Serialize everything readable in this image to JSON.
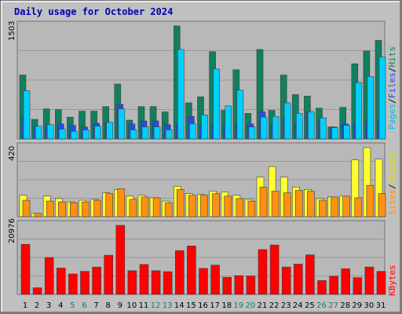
{
  "chart_data": {
    "type": "bar",
    "title": "Daily usage for October 2024",
    "days": [
      "1",
      "2",
      "3",
      "4",
      "5",
      "6",
      "7",
      "8",
      "9",
      "10",
      "11",
      "12",
      "13",
      "14",
      "15",
      "16",
      "17",
      "18",
      "19",
      "20",
      "21",
      "22",
      "23",
      "24",
      "25",
      "26",
      "27",
      "28",
      "29",
      "30",
      "31"
    ],
    "weekend_days": [
      "5",
      "6",
      "12",
      "13",
      "19",
      "20",
      "26",
      "27"
    ],
    "panels": {
      "top": {
        "max_label": "1503",
        "ylim": [
          0,
          1503
        ],
        "series": [
          {
            "name": "Hits",
            "color": "#108060",
            "values": [
              850,
              260,
              400,
              390,
              290,
              370,
              370,
              430,
              730,
              250,
              430,
              430,
              360,
              1503,
              480,
              560,
              1160,
              380,
              920,
              340,
              1190,
              380,
              850,
              590,
              570,
              410,
              160,
              420,
              1000,
              1170,
              1310
            ]
          },
          {
            "name": "Files",
            "color": "#2050e0",
            "values": [
              280,
              170,
              190,
              200,
              180,
              160,
              210,
              220,
              460,
              200,
              240,
              240,
              190,
              200,
              300,
              180,
              190,
              180,
              200,
              200,
              360,
              200,
              280,
              200,
              360,
              230,
              160,
              200,
              200,
              220,
              230
            ]
          },
          {
            "name": "Pages",
            "color": "#00d0ff",
            "values": [
              640,
              170,
              190,
              130,
              100,
              120,
              170,
              220,
              400,
              120,
              160,
              160,
              120,
              1190,
              200,
              320,
              930,
              440,
              650,
              160,
              290,
              300,
              480,
              340,
              360,
              280,
              150,
              180,
              750,
              830,
              1090
            ]
          }
        ]
      },
      "middle": {
        "max_label": "420",
        "ylim": [
          0,
          420
        ],
        "series": [
          {
            "name": "Visits",
            "color": "#ffff30",
            "values": [
              130,
              20,
              125,
              110,
              90,
              100,
              105,
              145,
              165,
              125,
              130,
              115,
              95,
              185,
              140,
              135,
              155,
              150,
              130,
              105,
              240,
              305,
              240,
              180,
              165,
              110,
              120,
              125,
              345,
              420,
              350
            ]
          },
          {
            "name": "Sites",
            "color": "#ff9010",
            "values": [
              100,
              20,
              95,
              90,
              85,
              90,
              100,
              140,
              170,
              105,
              120,
              115,
              85,
              165,
              130,
              130,
              140,
              125,
              110,
              95,
              180,
              155,
              145,
              160,
              155,
              100,
              120,
              125,
              115,
              190,
              140
            ]
          }
        ]
      },
      "bottom": {
        "max_label": "20976",
        "ylim": [
          0,
          20976
        ],
        "series": [
          {
            "name": "KBytes",
            "color": "#ff0000",
            "values": [
              15200,
              2000,
              11200,
              8000,
              6200,
              7000,
              8300,
              11900,
              20976,
              7200,
              9100,
              7200,
              6900,
              13300,
              14700,
              7900,
              8900,
              5200,
              5700,
              5600,
              13600,
              15000,
              8300,
              9200,
              12000,
              4200,
              5500,
              7800,
              5100,
              8300,
              7000
            ]
          }
        ]
      }
    },
    "legend": {
      "top": [
        "Pages",
        "/",
        "Files",
        "/",
        "Hits"
      ],
      "middle": [
        "Sites",
        "/",
        "Visits"
      ],
      "bottom": [
        "KBytes"
      ]
    }
  }
}
